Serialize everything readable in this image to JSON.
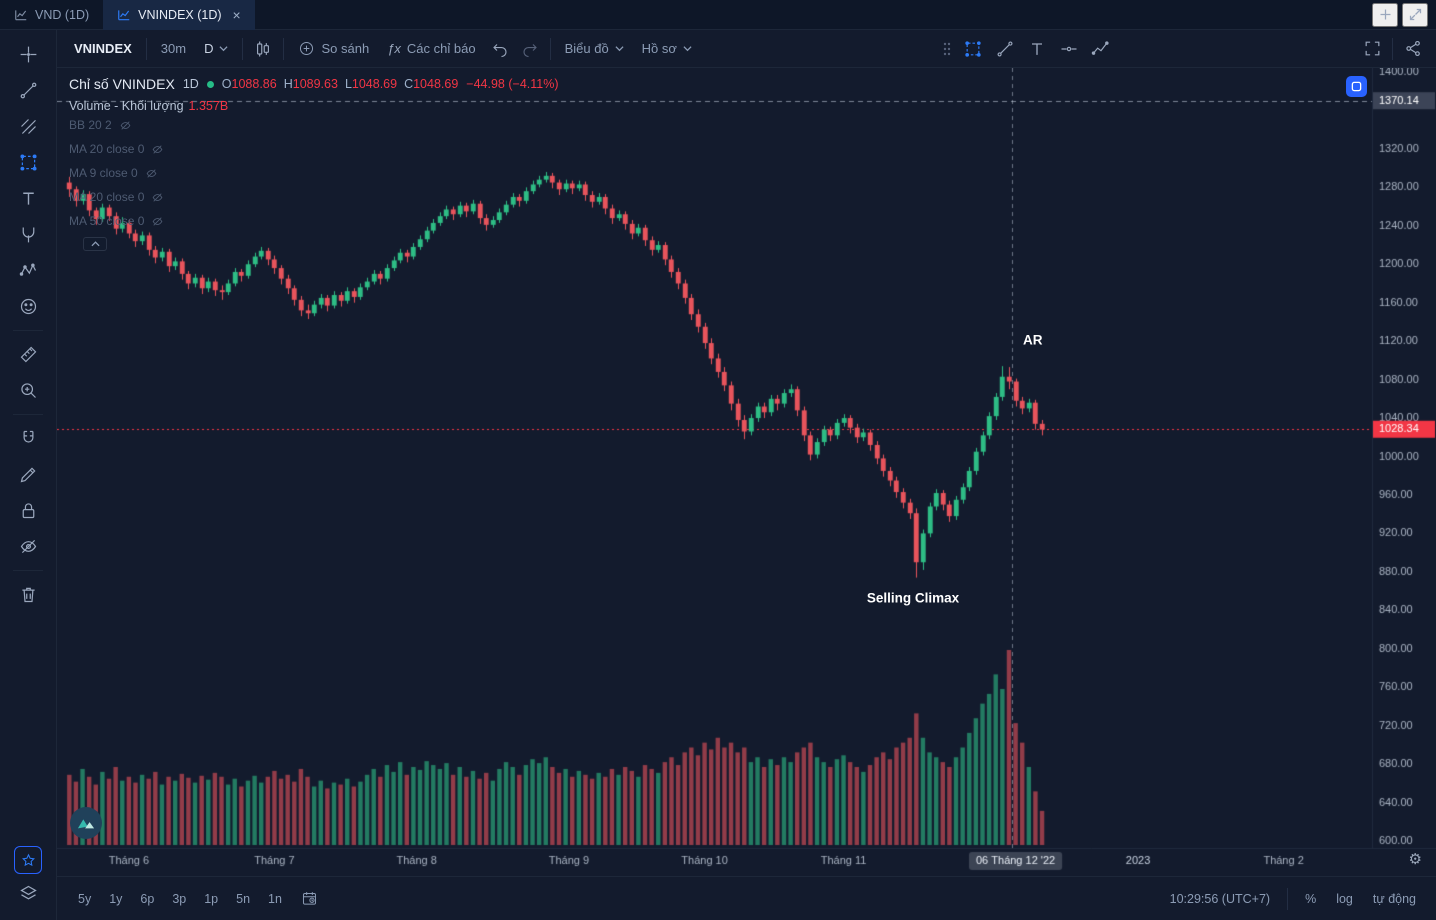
{
  "tabs": [
    {
      "label": "VND (1D)",
      "active": false
    },
    {
      "label": "VNINDEX (1D)",
      "active": true,
      "close": "×"
    }
  ],
  "toolbar": {
    "symbol": "VNINDEX",
    "interval_secondary": "30m",
    "interval": "D",
    "compare": "So sánh",
    "indicators": "Các chỉ báo",
    "chart_menu": "Biểu đồ",
    "profile": "Hồ sơ"
  },
  "legend": {
    "title": "Chỉ số VNINDEX",
    "interval": "1D",
    "ohlc": [
      {
        "k": "O",
        "v": "1088.86"
      },
      {
        "k": "H",
        "v": "1089.63"
      },
      {
        "k": "L",
        "v": "1048.69"
      },
      {
        "k": "C",
        "v": "1048.69"
      }
    ],
    "change": "−44.98 (−4.11%)",
    "volume_label": "Volume - Khối lượng",
    "volume_value": "1.357B",
    "collapse": "⌃"
  },
  "indicators": [
    {
      "label": "BB 20 2"
    },
    {
      "label": "MA 20 close 0"
    },
    {
      "label": "MA 9 close 0"
    },
    {
      "label": "MA 20 close 0"
    },
    {
      "label": "MA 50 close 0"
    }
  ],
  "annotations": [
    {
      "text": "AR",
      "day": 145.6,
      "price": 1121
    },
    {
      "text": "Selling Climax",
      "day": 127.5,
      "price": 853
    }
  ],
  "chart_data": {
    "type": "candlestick+volume",
    "title": "Chỉ số VNINDEX 1D",
    "up_color": "#2ebd85",
    "down_color": "#e8545c",
    "price_axis": {
      "min": 600,
      "max": 1400,
      "tick_step": 40
    },
    "visible_days": 196,
    "vline_day": 143,
    "levels": [
      {
        "value": 1370.14,
        "color": "#7d8697",
        "style": "dashed",
        "label_bg": "#3c4457"
      },
      {
        "value": 1028.34,
        "color": "#f23645",
        "style": "dotted",
        "label_bg": "#f23645"
      }
    ],
    "time_axis": [
      {
        "label": "Tháng 6",
        "day": 9
      },
      {
        "label": "Tháng 7",
        "day": 31
      },
      {
        "label": "Tháng 8",
        "day": 52.5
      },
      {
        "label": "Tháng 9",
        "day": 75.5
      },
      {
        "label": "Tháng 10",
        "day": 96
      },
      {
        "label": "Tháng 11",
        "day": 117
      },
      {
        "label": "06 Tháng 12 '22",
        "day": 143,
        "highlight": true
      },
      {
        "label": "2023",
        "day": 161.5,
        "year": true
      },
      {
        "label": "Tháng 2",
        "day": 183.5
      }
    ],
    "candles": [
      [
        1285,
        1291,
        1270,
        1278
      ],
      [
        1278,
        1281,
        1260,
        1266
      ],
      [
        1266,
        1277,
        1262,
        1273
      ],
      [
        1273,
        1276,
        1250,
        1256
      ],
      [
        1256,
        1259,
        1241,
        1247
      ],
      [
        1247,
        1263,
        1244,
        1259
      ],
      [
        1259,
        1262,
        1245,
        1250
      ],
      [
        1250,
        1254,
        1231,
        1237
      ],
      [
        1237,
        1249,
        1233,
        1243
      ],
      [
        1243,
        1246,
        1227,
        1232
      ],
      [
        1232,
        1236,
        1218,
        1224
      ],
      [
        1224,
        1234,
        1220,
        1230
      ],
      [
        1230,
        1233,
        1209,
        1215
      ],
      [
        1215,
        1219,
        1201,
        1207
      ],
      [
        1207,
        1217,
        1203,
        1213
      ],
      [
        1213,
        1216,
        1192,
        1198
      ],
      [
        1198,
        1207,
        1194,
        1203
      ],
      [
        1203,
        1206,
        1184,
        1190
      ],
      [
        1190,
        1193,
        1174,
        1180
      ],
      [
        1180,
        1190,
        1176,
        1186
      ],
      [
        1186,
        1189,
        1169,
        1175
      ],
      [
        1175,
        1186,
        1171,
        1182
      ],
      [
        1182,
        1185,
        1167,
        1173
      ],
      [
        1173,
        1178,
        1163,
        1171
      ],
      [
        1171,
        1184,
        1168,
        1180
      ],
      [
        1180,
        1196,
        1177,
        1192
      ],
      [
        1192,
        1195,
        1182,
        1188
      ],
      [
        1188,
        1204,
        1185,
        1200
      ],
      [
        1200,
        1212,
        1197,
        1208
      ],
      [
        1208,
        1218,
        1205,
        1214
      ],
      [
        1214,
        1217,
        1199,
        1205
      ],
      [
        1205,
        1209,
        1190,
        1196
      ],
      [
        1196,
        1199,
        1179,
        1185
      ],
      [
        1185,
        1189,
        1169,
        1175
      ],
      [
        1175,
        1178,
        1157,
        1163
      ],
      [
        1163,
        1167,
        1146,
        1152
      ],
      [
        1152,
        1158,
        1143,
        1149
      ],
      [
        1149,
        1162,
        1146,
        1158
      ],
      [
        1158,
        1169,
        1154,
        1165
      ],
      [
        1165,
        1168,
        1151,
        1157
      ],
      [
        1157,
        1172,
        1154,
        1168
      ],
      [
        1168,
        1171,
        1156,
        1162
      ],
      [
        1162,
        1176,
        1159,
        1172
      ],
      [
        1172,
        1175,
        1160,
        1166
      ],
      [
        1166,
        1180,
        1163,
        1176
      ],
      [
        1176,
        1186,
        1173,
        1182
      ],
      [
        1182,
        1194,
        1179,
        1190
      ],
      [
        1190,
        1193,
        1179,
        1185
      ],
      [
        1185,
        1200,
        1182,
        1196
      ],
      [
        1196,
        1208,
        1193,
        1204
      ],
      [
        1204,
        1216,
        1201,
        1212
      ],
      [
        1212,
        1215,
        1202,
        1208
      ],
      [
        1208,
        1222,
        1205,
        1218
      ],
      [
        1218,
        1230,
        1215,
        1226
      ],
      [
        1226,
        1239,
        1223,
        1235
      ],
      [
        1235,
        1247,
        1232,
        1243
      ],
      [
        1243,
        1254,
        1240,
        1250
      ],
      [
        1250,
        1261,
        1247,
        1257
      ],
      [
        1257,
        1260,
        1246,
        1252
      ],
      [
        1252,
        1265,
        1249,
        1261
      ],
      [
        1261,
        1264,
        1249,
        1255
      ],
      [
        1255,
        1267,
        1252,
        1263
      ],
      [
        1263,
        1266,
        1242,
        1248
      ],
      [
        1248,
        1252,
        1235,
        1241
      ],
      [
        1241,
        1250,
        1238,
        1246
      ],
      [
        1246,
        1258,
        1243,
        1254
      ],
      [
        1254,
        1266,
        1251,
        1262
      ],
      [
        1262,
        1274,
        1259,
        1270
      ],
      [
        1270,
        1273,
        1260,
        1266
      ],
      [
        1266,
        1280,
        1263,
        1276
      ],
      [
        1276,
        1287,
        1273,
        1283
      ],
      [
        1283,
        1292,
        1280,
        1288
      ],
      [
        1288,
        1296,
        1285,
        1292
      ],
      [
        1292,
        1295,
        1279,
        1285
      ],
      [
        1285,
        1288,
        1272,
        1278
      ],
      [
        1278,
        1288,
        1275,
        1284
      ],
      [
        1284,
        1287,
        1273,
        1279
      ],
      [
        1279,
        1287,
        1276,
        1283
      ],
      [
        1283,
        1286,
        1266,
        1272
      ],
      [
        1272,
        1276,
        1259,
        1265
      ],
      [
        1265,
        1274,
        1262,
        1270
      ],
      [
        1270,
        1273,
        1252,
        1258
      ],
      [
        1258,
        1262,
        1242,
        1248
      ],
      [
        1248,
        1256,
        1245,
        1252
      ],
      [
        1252,
        1255,
        1236,
        1242
      ],
      [
        1242,
        1246,
        1226,
        1232
      ],
      [
        1232,
        1242,
        1229,
        1238
      ],
      [
        1238,
        1241,
        1219,
        1225
      ],
      [
        1225,
        1229,
        1209,
        1215
      ],
      [
        1215,
        1224,
        1212,
        1220
      ],
      [
        1220,
        1223,
        1199,
        1205
      ],
      [
        1205,
        1209,
        1186,
        1192
      ],
      [
        1192,
        1196,
        1174,
        1180
      ],
      [
        1180,
        1184,
        1159,
        1165
      ],
      [
        1165,
        1169,
        1142,
        1148
      ],
      [
        1148,
        1153,
        1129,
        1135
      ],
      [
        1135,
        1139,
        1112,
        1118
      ],
      [
        1118,
        1123,
        1096,
        1102
      ],
      [
        1102,
        1107,
        1082,
        1088
      ],
      [
        1088,
        1093,
        1068,
        1074
      ],
      [
        1074,
        1078,
        1048,
        1055
      ],
      [
        1055,
        1060,
        1031,
        1038
      ],
      [
        1038,
        1043,
        1018,
        1026
      ],
      [
        1026,
        1044,
        1022,
        1040
      ],
      [
        1040,
        1056,
        1036,
        1052
      ],
      [
        1052,
        1056,
        1040,
        1046
      ],
      [
        1046,
        1064,
        1042,
        1060
      ],
      [
        1060,
        1064,
        1048,
        1055
      ],
      [
        1055,
        1070,
        1051,
        1066
      ],
      [
        1066,
        1075,
        1062,
        1070
      ],
      [
        1070,
        1073,
        1042,
        1048
      ],
      [
        1048,
        1052,
        1016,
        1022
      ],
      [
        1022,
        1026,
        996,
        1002
      ],
      [
        1002,
        1019,
        998,
        1015
      ],
      [
        1015,
        1032,
        1011,
        1028
      ],
      [
        1028,
        1031,
        1016,
        1022
      ],
      [
        1022,
        1039,
        1018,
        1035
      ],
      [
        1035,
        1044,
        1031,
        1040
      ],
      [
        1040,
        1043,
        1024,
        1030
      ],
      [
        1030,
        1034,
        1014,
        1020
      ],
      [
        1020,
        1029,
        1016,
        1025
      ],
      [
        1025,
        1028,
        1006,
        1012
      ],
      [
        1012,
        1016,
        992,
        998
      ],
      [
        998,
        1002,
        979,
        985
      ],
      [
        985,
        989,
        969,
        975
      ],
      [
        975,
        979,
        957,
        963
      ],
      [
        963,
        967,
        946,
        952
      ],
      [
        952,
        956,
        935,
        941
      ],
      [
        941,
        946,
        874,
        890
      ],
      [
        890,
        924,
        882,
        920
      ],
      [
        920,
        952,
        916,
        948
      ],
      [
        948,
        966,
        944,
        962
      ],
      [
        962,
        965,
        944,
        950
      ],
      [
        950,
        954,
        932,
        938
      ],
      [
        938,
        959,
        934,
        955
      ],
      [
        955,
        972,
        951,
        968
      ],
      [
        968,
        989,
        964,
        985
      ],
      [
        985,
        1009,
        981,
        1005
      ],
      [
        1005,
        1026,
        1001,
        1022
      ],
      [
        1022,
        1046,
        1018,
        1042
      ],
      [
        1042,
        1066,
        1038,
        1062
      ],
      [
        1062,
        1094,
        1058,
        1083
      ],
      [
        1083,
        1093,
        1070,
        1078
      ],
      [
        1078,
        1081,
        1052,
        1058
      ],
      [
        1058,
        1062,
        1044,
        1050
      ],
      [
        1050,
        1060,
        1046,
        1056
      ],
      [
        1056,
        1059,
        1028,
        1034
      ],
      [
        1034,
        1038,
        1022,
        1028
      ]
    ],
    "volumes": [
      0.72,
      0.65,
      0.78,
      0.7,
      0.62,
      0.75,
      0.68,
      0.8,
      0.66,
      0.7,
      0.64,
      0.72,
      0.68,
      0.75,
      0.62,
      0.7,
      0.66,
      0.73,
      0.69,
      0.64,
      0.71,
      0.67,
      0.74,
      0.7,
      0.62,
      0.68,
      0.6,
      0.66,
      0.71,
      0.64,
      0.7,
      0.76,
      0.68,
      0.72,
      0.65,
      0.78,
      0.7,
      0.6,
      0.66,
      0.58,
      0.64,
      0.62,
      0.68,
      0.6,
      0.65,
      0.72,
      0.78,
      0.7,
      0.82,
      0.75,
      0.85,
      0.72,
      0.8,
      0.77,
      0.86,
      0.82,
      0.78,
      0.84,
      0.72,
      0.8,
      0.7,
      0.76,
      0.68,
      0.74,
      0.66,
      0.78,
      0.85,
      0.8,
      0.72,
      0.82,
      0.88,
      0.84,
      0.9,
      0.8,
      0.74,
      0.78,
      0.7,
      0.76,
      0.72,
      0.68,
      0.74,
      0.7,
      0.78,
      0.72,
      0.8,
      0.76,
      0.7,
      0.82,
      0.78,
      0.74,
      0.85,
      0.9,
      0.82,
      0.95,
      1.0,
      0.92,
      1.05,
      0.98,
      1.1,
      1.0,
      1.05,
      0.95,
      1.0,
      0.85,
      0.9,
      0.8,
      0.88,
      0.82,
      0.9,
      0.85,
      0.95,
      1.0,
      1.05,
      0.9,
      0.85,
      0.8,
      0.88,
      0.92,
      0.85,
      0.8,
      0.75,
      0.82,
      0.9,
      0.95,
      0.88,
      1.0,
      1.05,
      1.1,
      1.35,
      1.1,
      0.95,
      0.9,
      0.85,
      0.8,
      0.9,
      1.0,
      1.15,
      1.3,
      1.45,
      1.55,
      1.75,
      1.6,
      2.0,
      1.25,
      1.05,
      0.8,
      0.55,
      0.35
    ]
  },
  "bottom_bar": {
    "ranges": [
      "5y",
      "1y",
      "6p",
      "3p",
      "1p",
      "5n",
      "1n"
    ],
    "clock": "10:29:56 (UTC+7)",
    "percent": "%",
    "log": "log",
    "auto": "tự động"
  }
}
